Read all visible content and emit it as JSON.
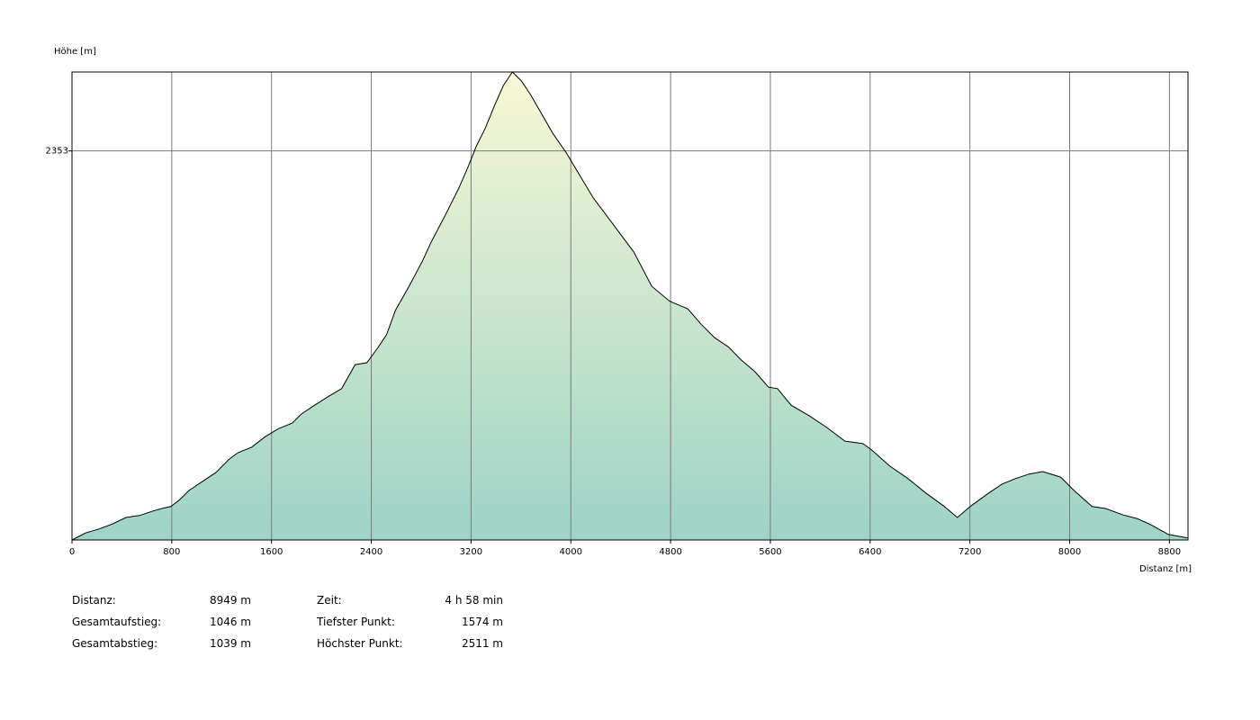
{
  "chart_data": {
    "type": "area",
    "y_label": "Höhe [m]",
    "x_label": "Distanz [m]",
    "x": [
      0,
      108,
      216,
      324,
      432,
      541,
      649,
      721,
      793,
      865,
      937,
      1045,
      1153,
      1261,
      1333,
      1441,
      1550,
      1658,
      1766,
      1838,
      1946,
      2054,
      2162,
      2270,
      2364,
      2450,
      2522,
      2594,
      2703,
      2811,
      2883,
      2991,
      3099,
      3171,
      3243,
      3315,
      3387,
      3459,
      3531,
      3604,
      3676,
      3748,
      3856,
      3964,
      4072,
      4180,
      4288,
      4396,
      4504,
      4649,
      4793,
      4937,
      5045,
      5153,
      5261,
      5369,
      5477,
      5585,
      5657,
      5766,
      5910,
      6054,
      6198,
      6342,
      6414,
      6558,
      6703,
      6847,
      6991,
      7099,
      7207,
      7351,
      7459,
      7567,
      7675,
      7784,
      7928,
      8036,
      8180,
      8288,
      8432,
      8540,
      8648,
      8793,
      8949
    ],
    "values": [
      1574,
      1588,
      1596,
      1606,
      1619,
      1623,
      1632,
      1637,
      1641,
      1655,
      1673,
      1691,
      1709,
      1736,
      1749,
      1760,
      1781,
      1797,
      1808,
      1826,
      1844,
      1861,
      1877,
      1925,
      1929,
      1958,
      1985,
      2034,
      2082,
      2133,
      2172,
      2223,
      2277,
      2318,
      2363,
      2399,
      2443,
      2484,
      2511,
      2493,
      2466,
      2435,
      2388,
      2349,
      2304,
      2259,
      2223,
      2187,
      2151,
      2082,
      2052,
      2037,
      2006,
      1979,
      1961,
      1934,
      1911,
      1880,
      1877,
      1844,
      1823,
      1799,
      1772,
      1767,
      1754,
      1722,
      1697,
      1668,
      1642,
      1619,
      1642,
      1668,
      1686,
      1697,
      1706,
      1711,
      1700,
      1673,
      1641,
      1637,
      1624,
      1617,
      1605,
      1585,
      1578
    ],
    "xlim": [
      0,
      8949
    ],
    "ylim": [
      1574,
      2511
    ],
    "xticks": [
      0,
      800,
      1600,
      2400,
      3200,
      4000,
      4800,
      5600,
      6400,
      7200,
      8000,
      8800
    ],
    "yticks": [
      2353
    ],
    "grid": true,
    "line_color": "#000000",
    "fill_colors": [
      "#f8f8d4",
      "#9dd3c7"
    ]
  },
  "stats": {
    "left": [
      {
        "label": "Distanz:",
        "value": "8949 m"
      },
      {
        "label": "Gesamtaufstieg:",
        "value": "1046 m"
      },
      {
        "label": "Gesamtabstieg:",
        "value": "1039 m"
      }
    ],
    "right": [
      {
        "label": "Zeit:",
        "value": "4 h 58 min"
      },
      {
        "label": "Tiefster Punkt:",
        "value": "1574 m"
      },
      {
        "label": "Höchster Punkt:",
        "value": "2511 m"
      }
    ]
  }
}
